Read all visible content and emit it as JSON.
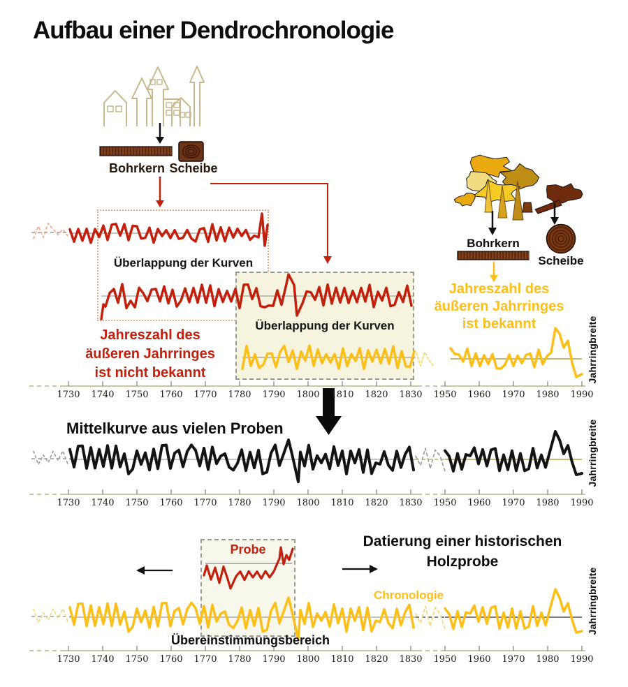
{
  "title": "Aufbau einer Dendrochronologie",
  "colors": {
    "red": "#c3200c",
    "yellow": "#fcbf17",
    "black_curve": "#141414",
    "cream": "#f6f4df",
    "axis_tan": "#bfb183",
    "bar_brown": "#5e2b12",
    "bar_stripe": "#8c4a22",
    "disc_brown": "#7a3a16"
  },
  "top_left": {
    "bohrkern": "Bohrkern",
    "scheibe": "Scheibe"
  },
  "top_right": {
    "bohrkern": "Bohrkern",
    "scheibe": "Scheibe",
    "known_text": "Jahreszahl des\näußeren Jahrringes\nist bekannt"
  },
  "overlap_label_1": "Überlappung der Kurven",
  "overlap_label_2": "Überlappung der Kurven",
  "unknown_text": "Jahreszahl des\näußeren Jahrringes\nist nicht bekannt",
  "mittelkurve_label": "Mittelkurve aus vielen Proben",
  "datierung_label": "Datierung einer historischen\nHolzprobe",
  "probe_label": "Probe",
  "chronologie_label": "Chronologie",
  "match_label": "Übereinstimmungsbereich",
  "y_axis_label": "Jahrringbreite",
  "axis": {
    "years_left": [
      "1730",
      "1740",
      "1750",
      "1760",
      "1770",
      "1780",
      "1790",
      "1800",
      "1810",
      "1820",
      "1830"
    ],
    "years_right": [
      "1950",
      "1960",
      "1970",
      "1980",
      "1990"
    ]
  }
}
